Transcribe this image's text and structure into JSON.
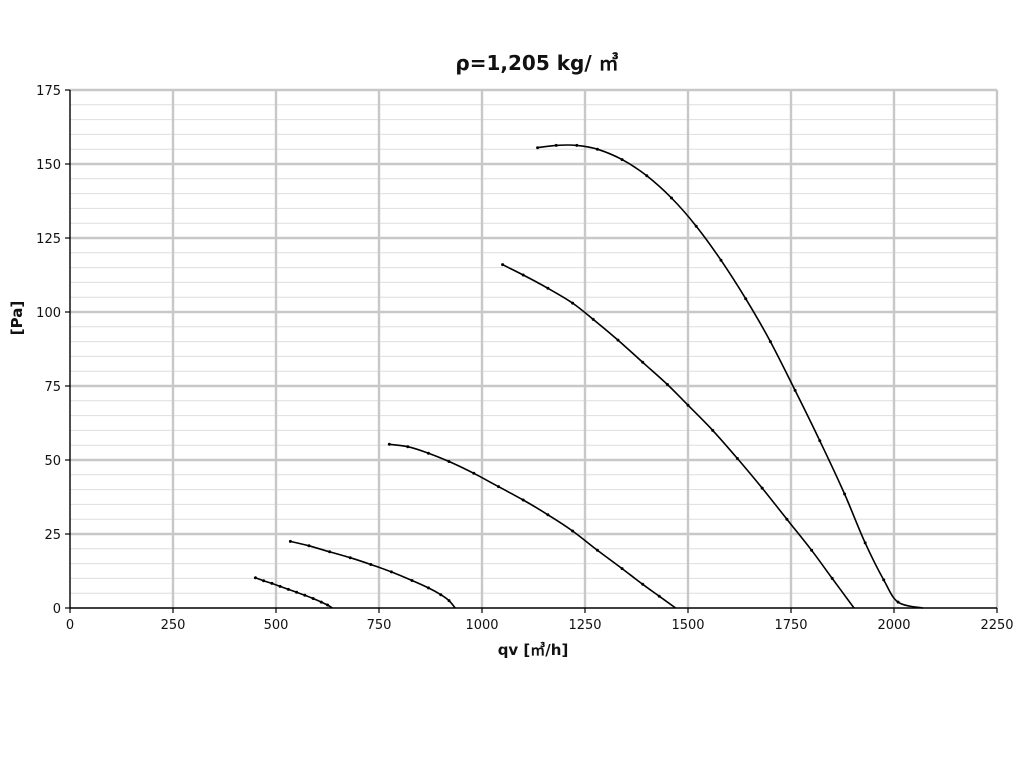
{
  "chart_data": {
    "type": "line",
    "title": "ρ=1,205 kg/ ㎥",
    "xlabel": "qv [㎥/h]",
    "ylabel": "[Pa]",
    "xlim": [
      0,
      2250
    ],
    "ylim": [
      0,
      175
    ],
    "x_ticks": [
      "0",
      "250",
      "500",
      "750",
      "1000",
      "1250",
      "1500",
      "1750",
      "2000",
      "2250"
    ],
    "y_ticks": [
      "0",
      "25",
      "50",
      "75",
      "100",
      "125",
      "150",
      "175"
    ],
    "grid": true,
    "legend": "none",
    "series": [
      {
        "color": "#000000",
        "points": [
          [
            450,
            10.2
          ],
          [
            470,
            9.2
          ],
          [
            490,
            8.3
          ],
          [
            510,
            7.3
          ],
          [
            530,
            6.3
          ],
          [
            550,
            5.3
          ],
          [
            570,
            4.3
          ],
          [
            590,
            3.2
          ],
          [
            610,
            2.0
          ],
          [
            625,
            1.0
          ],
          [
            637,
            0
          ]
        ]
      },
      {
        "color": "#000000",
        "points": [
          [
            535,
            22.5
          ],
          [
            580,
            21.0
          ],
          [
            630,
            19.0
          ],
          [
            680,
            17.0
          ],
          [
            730,
            14.7
          ],
          [
            780,
            12.2
          ],
          [
            830,
            9.3
          ],
          [
            870,
            6.8
          ],
          [
            900,
            4.5
          ],
          [
            920,
            2.5
          ],
          [
            935,
            0
          ]
        ]
      },
      {
        "color": "#000000",
        "points": [
          [
            775,
            55.3
          ],
          [
            820,
            54.5
          ],
          [
            870,
            52.3
          ],
          [
            920,
            49.5
          ],
          [
            980,
            45.5
          ],
          [
            1040,
            41.0
          ],
          [
            1100,
            36.5
          ],
          [
            1160,
            31.5
          ],
          [
            1220,
            26.0
          ],
          [
            1280,
            19.5
          ],
          [
            1340,
            13.3
          ],
          [
            1390,
            8.0
          ],
          [
            1430,
            4.0
          ],
          [
            1470,
            0
          ]
        ]
      },
      {
        "color": "#000000",
        "points": [
          [
            1050,
            116.0
          ],
          [
            1100,
            112.5
          ],
          [
            1160,
            108.0
          ],
          [
            1220,
            103.0
          ],
          [
            1270,
            97.5
          ],
          [
            1330,
            90.5
          ],
          [
            1390,
            83.0
          ],
          [
            1450,
            75.5
          ],
          [
            1500,
            68.5
          ],
          [
            1560,
            60.0
          ],
          [
            1620,
            50.5
          ],
          [
            1680,
            40.5
          ],
          [
            1740,
            30.0
          ],
          [
            1800,
            19.5
          ],
          [
            1850,
            10.0
          ],
          [
            1903,
            0
          ]
        ]
      },
      {
        "color": "#000000",
        "points": [
          [
            1135,
            155.5
          ],
          [
            1180,
            156.3
          ],
          [
            1230,
            156.3
          ],
          [
            1280,
            155.0
          ],
          [
            1340,
            151.5
          ],
          [
            1400,
            146.0
          ],
          [
            1460,
            138.5
          ],
          [
            1520,
            129.0
          ],
          [
            1580,
            117.5
          ],
          [
            1640,
            104.5
          ],
          [
            1700,
            90.0
          ],
          [
            1760,
            73.5
          ],
          [
            1820,
            56.5
          ],
          [
            1880,
            38.5
          ],
          [
            1930,
            22.0
          ],
          [
            1975,
            9.5
          ],
          [
            2010,
            2.0
          ],
          [
            2070,
            0
          ]
        ]
      }
    ]
  }
}
